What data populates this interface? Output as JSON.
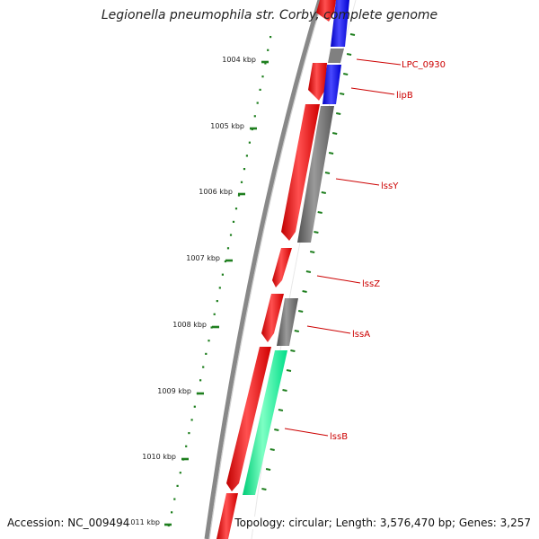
{
  "header": {
    "title": "Legionella pneumophila str. Corby, complete genome"
  },
  "footer": {
    "accession": "Accession: NC_009494",
    "summary": "Topology: circular; Length: 3,576,470 bp; Genes: 3,257"
  },
  "scale": {
    "unit": "kbp",
    "ticks": [
      {
        "label": "1004 kbp"
      },
      {
        "label": "1005 kbp"
      },
      {
        "label": "1006 kbp"
      },
      {
        "label": "1007 kbp"
      },
      {
        "label": "1008 kbp"
      },
      {
        "label": "1009 kbp"
      },
      {
        "label": "1010 kbp"
      },
      {
        "label": "1011 kbp"
      }
    ]
  },
  "genes": [
    {
      "name": "LPC_0930"
    },
    {
      "name": "lipB"
    },
    {
      "name": "lssY"
    },
    {
      "name": "lssZ"
    },
    {
      "name": "lssA"
    },
    {
      "name": "lssB"
    }
  ],
  "colors": {
    "forward_cds": "#ff0000",
    "reverse_cds": "#707070",
    "blue_feature": "#0000ff",
    "green_feature": "#00ff99",
    "backbone": "#888888",
    "tick": "#1f7f1f",
    "label_line": "#cc0000",
    "label_text": "#cc0000"
  }
}
